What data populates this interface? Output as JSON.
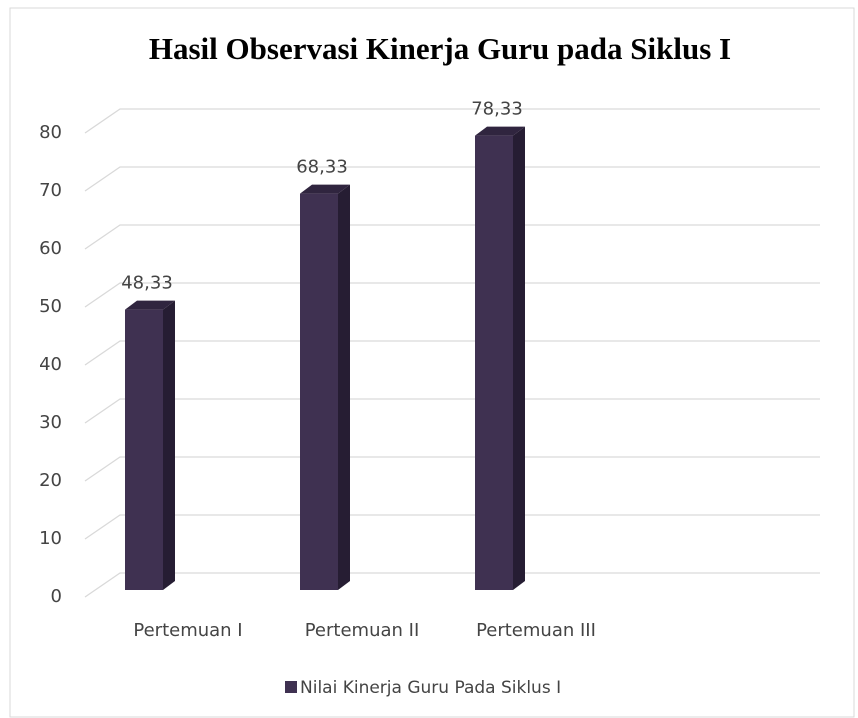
{
  "chart_data": {
    "type": "bar",
    "title": "Hasil Observasi Kinerja Guru pada Siklus I",
    "categories": [
      "Pertemuan I",
      "Pertemuan II",
      "Pertemuan III"
    ],
    "series": [
      {
        "name": "Nilai Kinerja Guru Pada Siklus I",
        "color": "#3f3151",
        "values": [
          48.33,
          68.33,
          78.33
        ],
        "value_labels": [
          "48,33",
          "68,33",
          "78,33"
        ]
      }
    ],
    "ylim": [
      0,
      80
    ],
    "yticks": [
      0,
      10,
      20,
      30,
      40,
      50,
      60,
      70,
      80
    ],
    "grid": true,
    "legend": "bottom"
  }
}
